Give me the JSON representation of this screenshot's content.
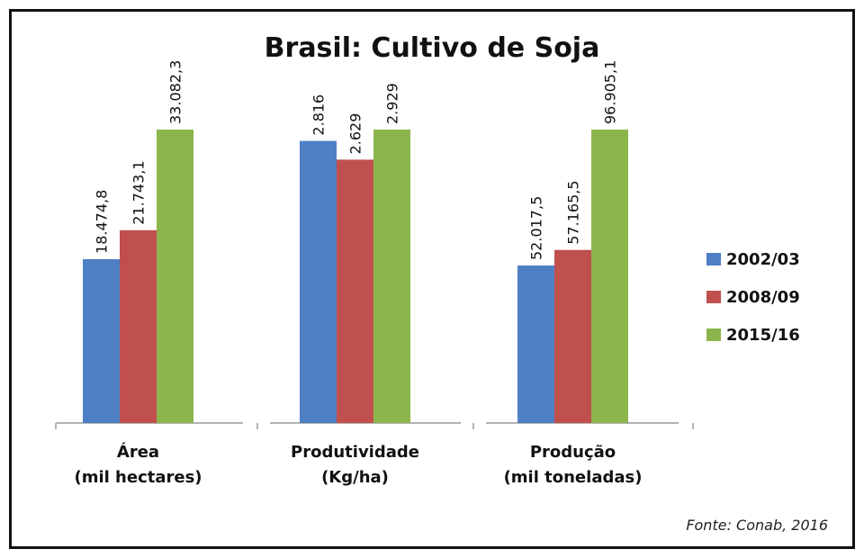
{
  "chart_data": {
    "type": "bar",
    "title": "Brasil: Cultivo de Soja",
    "categories": [
      [
        "Área",
        "(mil hectares)"
      ],
      [
        "Produtividade",
        "(Kg/ha)"
      ],
      [
        "Produção",
        "(mil toneladas)"
      ]
    ],
    "series": [
      {
        "name": "2002/03",
        "color": "#4F7FC4",
        "values": [
          18474.8,
          2816,
          52017.5
        ],
        "labels": [
          "18.474,8",
          "2.816",
          "52.017,5"
        ]
      },
      {
        "name": "2008/09",
        "color": "#C0504D",
        "values": [
          21743.1,
          2629,
          57165.5
        ],
        "labels": [
          "21.743,1",
          "2.629",
          "57.165,5"
        ]
      },
      {
        "name": "2015/16",
        "color": "#8DB54E",
        "values": [
          33082.3,
          2929,
          96905.1
        ],
        "labels": [
          "33.082,3",
          "2.929",
          "96.905,1"
        ]
      }
    ],
    "legend": "right",
    "grid": false,
    "source": "Fonte: Conab, 2016"
  }
}
